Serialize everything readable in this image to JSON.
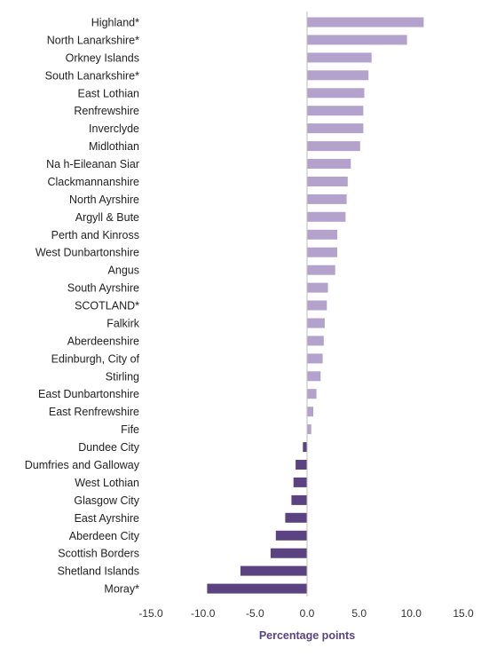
{
  "chart_data": {
    "type": "bar",
    "orientation": "horizontal",
    "categories": [
      "Highland*",
      "North Lanarkshire*",
      "Orkney Islands",
      "South Lanarkshire*",
      "East Lothian",
      "Renfrewshire",
      "Inverclyde",
      "Midlothian",
      "Na h-Eileanan Siar",
      "Clackmannanshire",
      "North Ayrshire",
      "Argyll & Bute",
      "Perth and Kinross",
      "West Dunbartonshire",
      "Angus",
      "South Ayrshire",
      "SCOTLAND*",
      "Falkirk",
      "Aberdeenshire",
      "Edinburgh, City of",
      "Stirling",
      "East Dunbartonshire",
      "East Renfrewshire",
      "Fife",
      "Dundee City",
      "Dumfries and Galloway",
      "West Lothian",
      "Glasgow City",
      "East Ayrshire",
      "Aberdeen City",
      "Scottish Borders",
      "Shetland Islands",
      "Moray*"
    ],
    "values": [
      11.2,
      9.6,
      6.2,
      5.9,
      5.5,
      5.4,
      5.4,
      5.1,
      4.2,
      3.9,
      3.8,
      3.7,
      2.9,
      2.9,
      2.7,
      2.0,
      1.9,
      1.7,
      1.6,
      1.5,
      1.3,
      0.9,
      0.6,
      0.4,
      -0.4,
      -1.1,
      -1.3,
      -1.5,
      -2.1,
      -3.0,
      -3.5,
      -6.4,
      -9.6
    ],
    "xlabel": "Percentage points",
    "ylabel": "",
    "xlim": [
      -15,
      15
    ],
    "xticks": [
      -15,
      -10,
      -5,
      0,
      5,
      10,
      15
    ],
    "xtick_labels": [
      "-15.0",
      "-10.0",
      "-5.0",
      "0.0",
      "5.0",
      "10.0",
      "15.0"
    ],
    "grid": false,
    "colors": {
      "positive": "#b3a2cc",
      "negative": "#5b4280",
      "axis_title": "#5b4280",
      "axis_line": "#bfbfbf"
    }
  }
}
